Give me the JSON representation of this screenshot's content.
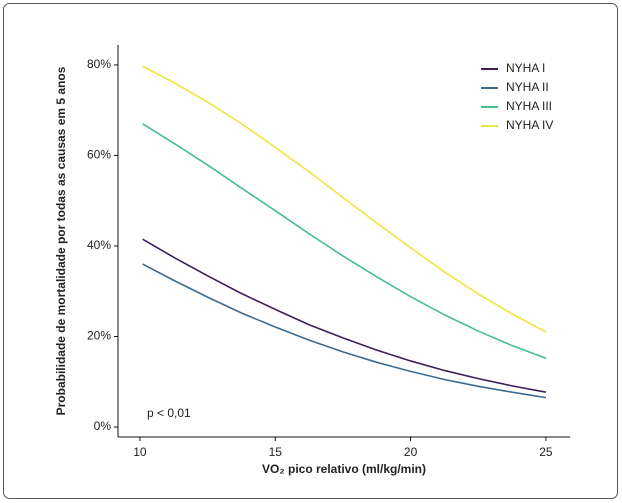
{
  "chart_data": {
    "type": "line",
    "x": [
      10.1,
      11.25,
      12.5,
      13.75,
      15,
      16.25,
      17.5,
      18.75,
      20,
      21.25,
      22.5,
      23.75,
      25
    ],
    "series": [
      {
        "name": "NYHA I",
        "color": "#3d1f5c",
        "values": [
          41.5,
          37.5,
          33.4,
          29.5,
          26.0,
          22.6,
          19.7,
          17.0,
          14.6,
          12.5,
          10.7,
          9.1,
          7.7
        ]
      },
      {
        "name": "NYHA II",
        "color": "#3b6b90",
        "values": [
          36.0,
          32.4,
          28.7,
          25.2,
          22.1,
          19.2,
          16.6,
          14.3,
          12.3,
          10.5,
          9.0,
          7.7,
          6.5
        ]
      },
      {
        "name": "NYHA III",
        "color": "#44bf8e",
        "values": [
          67.0,
          62.7,
          57.9,
          52.8,
          47.8,
          42.7,
          37.8,
          33.2,
          28.8,
          24.8,
          21.2,
          18.0,
          15.2
        ]
      },
      {
        "name": "NYHA IV",
        "color": "#ece63e",
        "values": [
          79.7,
          76.1,
          71.8,
          67.0,
          61.8,
          56.4,
          50.7,
          45.1,
          39.6,
          34.3,
          29.4,
          25.0,
          21.0
        ]
      }
    ],
    "x_label": "VO₂ pico relativo (ml/kg/min)",
    "y_label": "Probabilidade de mortalidade por todas as causas em 5 anos",
    "annotation": "p < 0,01",
    "xlim": [
      9.19,
      25.89
    ],
    "xticks": [
      10,
      15,
      20,
      25
    ],
    "ylim": [
      -2.2,
      84.4
    ],
    "yticks": [
      {
        "value": 0,
        "label": "0%"
      },
      {
        "value": 20,
        "label": "20%"
      },
      {
        "value": 40,
        "label": "40%"
      },
      {
        "value": 60,
        "label": "60%"
      },
      {
        "value": 80,
        "label": "80%"
      }
    ],
    "legend": "top-right",
    "grid": false
  }
}
